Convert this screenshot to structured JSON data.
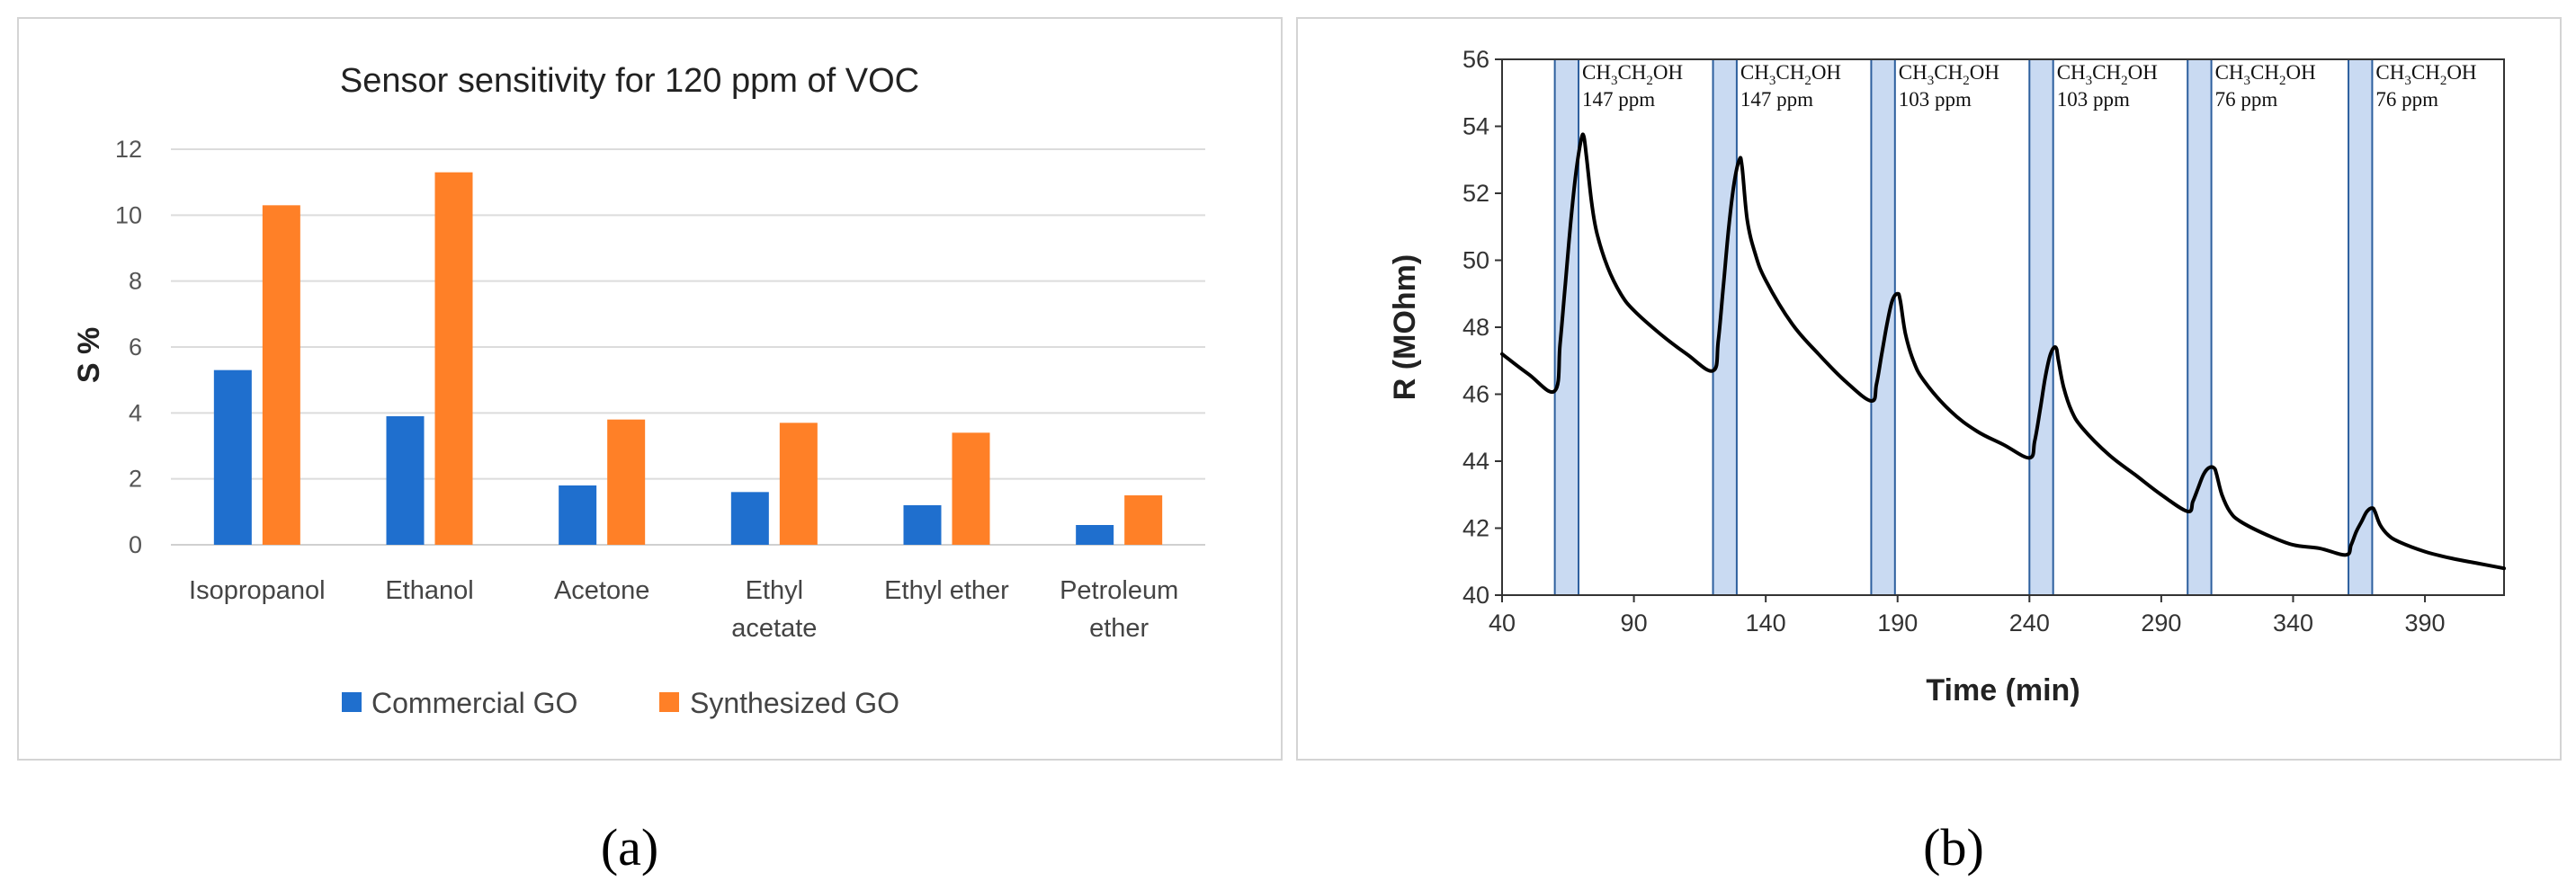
{
  "chart_data": [
    {
      "type": "bar",
      "title": "Sensor sensitivity for 120 ppm of VOC",
      "xlabel": "",
      "ylabel": "S %",
      "ylim": [
        0,
        12
      ],
      "yticks": [
        "0",
        "2",
        "4",
        "6",
        "8",
        "10",
        "12"
      ],
      "grid": true,
      "legend_position": "bottom",
      "categories": [
        [
          "Isopropanol"
        ],
        [
          "Ethanol"
        ],
        [
          "Acetone"
        ],
        [
          "Ethyl",
          "acetate"
        ],
        [
          "Ethyl ether"
        ],
        [
          "Petroleum",
          "ether"
        ]
      ],
      "series": [
        {
          "name": "Commercial GO",
          "color": "#1f6fce",
          "values": [
            5.3,
            3.9,
            1.8,
            1.6,
            1.2,
            0.6
          ]
        },
        {
          "name": "Synthesized GO",
          "color": "#ff8027",
          "values": [
            10.3,
            11.3,
            3.8,
            3.7,
            3.4,
            1.5
          ]
        }
      ],
      "panel_label": "(a)"
    },
    {
      "type": "line",
      "title": "",
      "xlabel": "Time (min)",
      "ylabel": "R (MOhm)",
      "xlim": [
        40,
        420
      ],
      "ylim": [
        40,
        56
      ],
      "xticks": [
        "40",
        "90",
        "140",
        "190",
        "240",
        "290",
        "340",
        "390"
      ],
      "yticks": [
        "40",
        "42",
        "44",
        "46",
        "48",
        "50",
        "52",
        "54",
        "56"
      ],
      "grid": false,
      "exposures": [
        {
          "start": 60,
          "end": 69,
          "gas": "CH3CH2OH",
          "gas_parts": [
            "CH",
            "3",
            "CH",
            "2",
            "OH"
          ],
          "concentration": "147 ppm"
        },
        {
          "start": 120,
          "end": 129,
          "gas": "CH3CH2OH",
          "gas_parts": [
            "CH",
            "3",
            "CH",
            "2",
            "OH"
          ],
          "concentration": "147 ppm"
        },
        {
          "start": 180,
          "end": 189,
          "gas": "CH3CH2OH",
          "gas_parts": [
            "CH",
            "3",
            "CH",
            "2",
            "OH"
          ],
          "concentration": "103 ppm"
        },
        {
          "start": 240,
          "end": 249,
          "gas": "CH3CH2OH",
          "gas_parts": [
            "CH",
            "3",
            "CH",
            "2",
            "OH"
          ],
          "concentration": "103 ppm"
        },
        {
          "start": 300,
          "end": 309,
          "gas": "CH3CH2OH",
          "gas_parts": [
            "CH",
            "3",
            "CH",
            "2",
            "OH"
          ],
          "concentration": "76 ppm"
        },
        {
          "start": 361,
          "end": 370,
          "gas": "CH3CH2OH",
          "gas_parts": [
            "CH",
            "3",
            "CH",
            "2",
            "OH"
          ],
          "concentration": "76 ppm"
        }
      ],
      "series": [
        {
          "name": "Resistance",
          "color": "#000000",
          "x": [
            40,
            50,
            60,
            62,
            64,
            66,
            68,
            70,
            71,
            72,
            74,
            76,
            80,
            85,
            90,
            100,
            110,
            120,
            122,
            124,
            126,
            128,
            130,
            131,
            133,
            136,
            140,
            150,
            160,
            170,
            180,
            182,
            184,
            186,
            188,
            190,
            191,
            193,
            196,
            200,
            210,
            220,
            230,
            240,
            242,
            244,
            246,
            248,
            250,
            251,
            253,
            256,
            260,
            270,
            280,
            290,
            300,
            302,
            304,
            306,
            308,
            310,
            311,
            313,
            316,
            320,
            330,
            340,
            350,
            360,
            362,
            364,
            366,
            368,
            370,
            371,
            373,
            376,
            380,
            390,
            400,
            410,
            420
          ],
          "y": [
            47.2,
            46.6,
            46.1,
            47.5,
            49.3,
            51.1,
            52.6,
            53.6,
            53.7,
            53.1,
            51.7,
            50.8,
            49.8,
            49.0,
            48.5,
            47.8,
            47.2,
            46.7,
            47.6,
            49.3,
            51.0,
            52.3,
            53.0,
            52.8,
            51.2,
            50.2,
            49.4,
            48.1,
            47.2,
            46.4,
            45.8,
            46.3,
            47.2,
            48.1,
            48.8,
            49.0,
            48.8,
            47.8,
            47.0,
            46.4,
            45.5,
            44.9,
            44.5,
            44.1,
            44.6,
            45.5,
            46.5,
            47.2,
            47.4,
            47.0,
            46.2,
            45.5,
            45.0,
            44.2,
            43.6,
            43.0,
            42.5,
            42.8,
            43.2,
            43.6,
            43.8,
            43.8,
            43.6,
            43.0,
            42.5,
            42.2,
            41.8,
            41.5,
            41.4,
            41.2,
            41.5,
            41.9,
            42.2,
            42.5,
            42.6,
            42.5,
            42.1,
            41.8,
            41.6,
            41.3,
            41.1,
            40.95,
            40.8
          ]
        }
      ],
      "panel_label": "(b)"
    }
  ]
}
